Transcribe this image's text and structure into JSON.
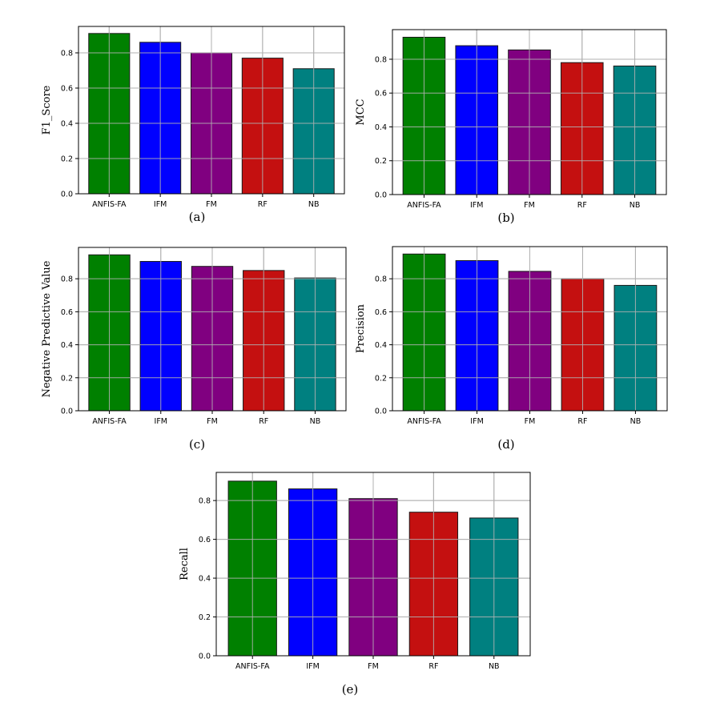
{
  "chart_data": [
    {
      "type": "bar",
      "caption": "(a)",
      "ylabel": "F1_Score",
      "xlabel": "",
      "categories": [
        "ANFIS-FA",
        "IFM",
        "FM",
        "RF",
        "NB"
      ],
      "values": [
        0.91,
        0.86,
        0.8,
        0.77,
        0.71
      ],
      "colors": [
        "#008000",
        "#0000ff",
        "#800080",
        "#c41010",
        "#008080"
      ],
      "ylim": [
        0,
        0.95
      ],
      "yticks": [
        0.0,
        0.2,
        0.4,
        0.6,
        0.8
      ],
      "grid": true
    },
    {
      "type": "bar",
      "caption": "(b)",
      "ylabel": "MCC",
      "xlabel": "",
      "categories": [
        "ANFIS-FA",
        "IFM",
        "FM",
        "RF",
        "NB"
      ],
      "values": [
        0.93,
        0.88,
        0.855,
        0.78,
        0.76
      ],
      "colors": [
        "#008000",
        "#0000ff",
        "#800080",
        "#c41010",
        "#008080"
      ],
      "ylim": [
        0,
        0.975
      ],
      "yticks": [
        0.0,
        0.2,
        0.4,
        0.6,
        0.8
      ],
      "grid": true
    },
    {
      "type": "bar",
      "caption": "(c)",
      "ylabel": "Negative Predictive Value",
      "xlabel": "",
      "categories": [
        "ANFIS-FA",
        "IFM",
        "FM",
        "RF",
        "NB"
      ],
      "values": [
        0.945,
        0.905,
        0.875,
        0.85,
        0.805
      ],
      "colors": [
        "#008000",
        "#0000ff",
        "#800080",
        "#c41010",
        "#008080"
      ],
      "ylim": [
        0,
        0.99
      ],
      "yticks": [
        0.0,
        0.2,
        0.4,
        0.6,
        0.8
      ],
      "grid": true
    },
    {
      "type": "bar",
      "caption": "(d)",
      "ylabel": "Precision",
      "xlabel": "",
      "categories": [
        "ANFIS-FA",
        "IFM",
        "FM",
        "RF",
        "NB"
      ],
      "values": [
        0.95,
        0.91,
        0.845,
        0.8,
        0.76
      ],
      "colors": [
        "#008000",
        "#0000ff",
        "#800080",
        "#c41010",
        "#008080"
      ],
      "ylim": [
        0,
        0.995
      ],
      "yticks": [
        0.0,
        0.2,
        0.4,
        0.6,
        0.8
      ],
      "grid": true
    },
    {
      "type": "bar",
      "caption": "(e)",
      "ylabel": "Recall",
      "xlabel": "",
      "categories": [
        "ANFIS-FA",
        "IFM",
        "FM",
        "RF",
        "NB"
      ],
      "values": [
        0.9,
        0.86,
        0.81,
        0.74,
        0.71
      ],
      "colors": [
        "#008000",
        "#0000ff",
        "#800080",
        "#c41010",
        "#008080"
      ],
      "ylim": [
        0,
        0.945
      ],
      "yticks": [
        0.0,
        0.2,
        0.4,
        0.6,
        0.8
      ],
      "grid": true
    }
  ]
}
